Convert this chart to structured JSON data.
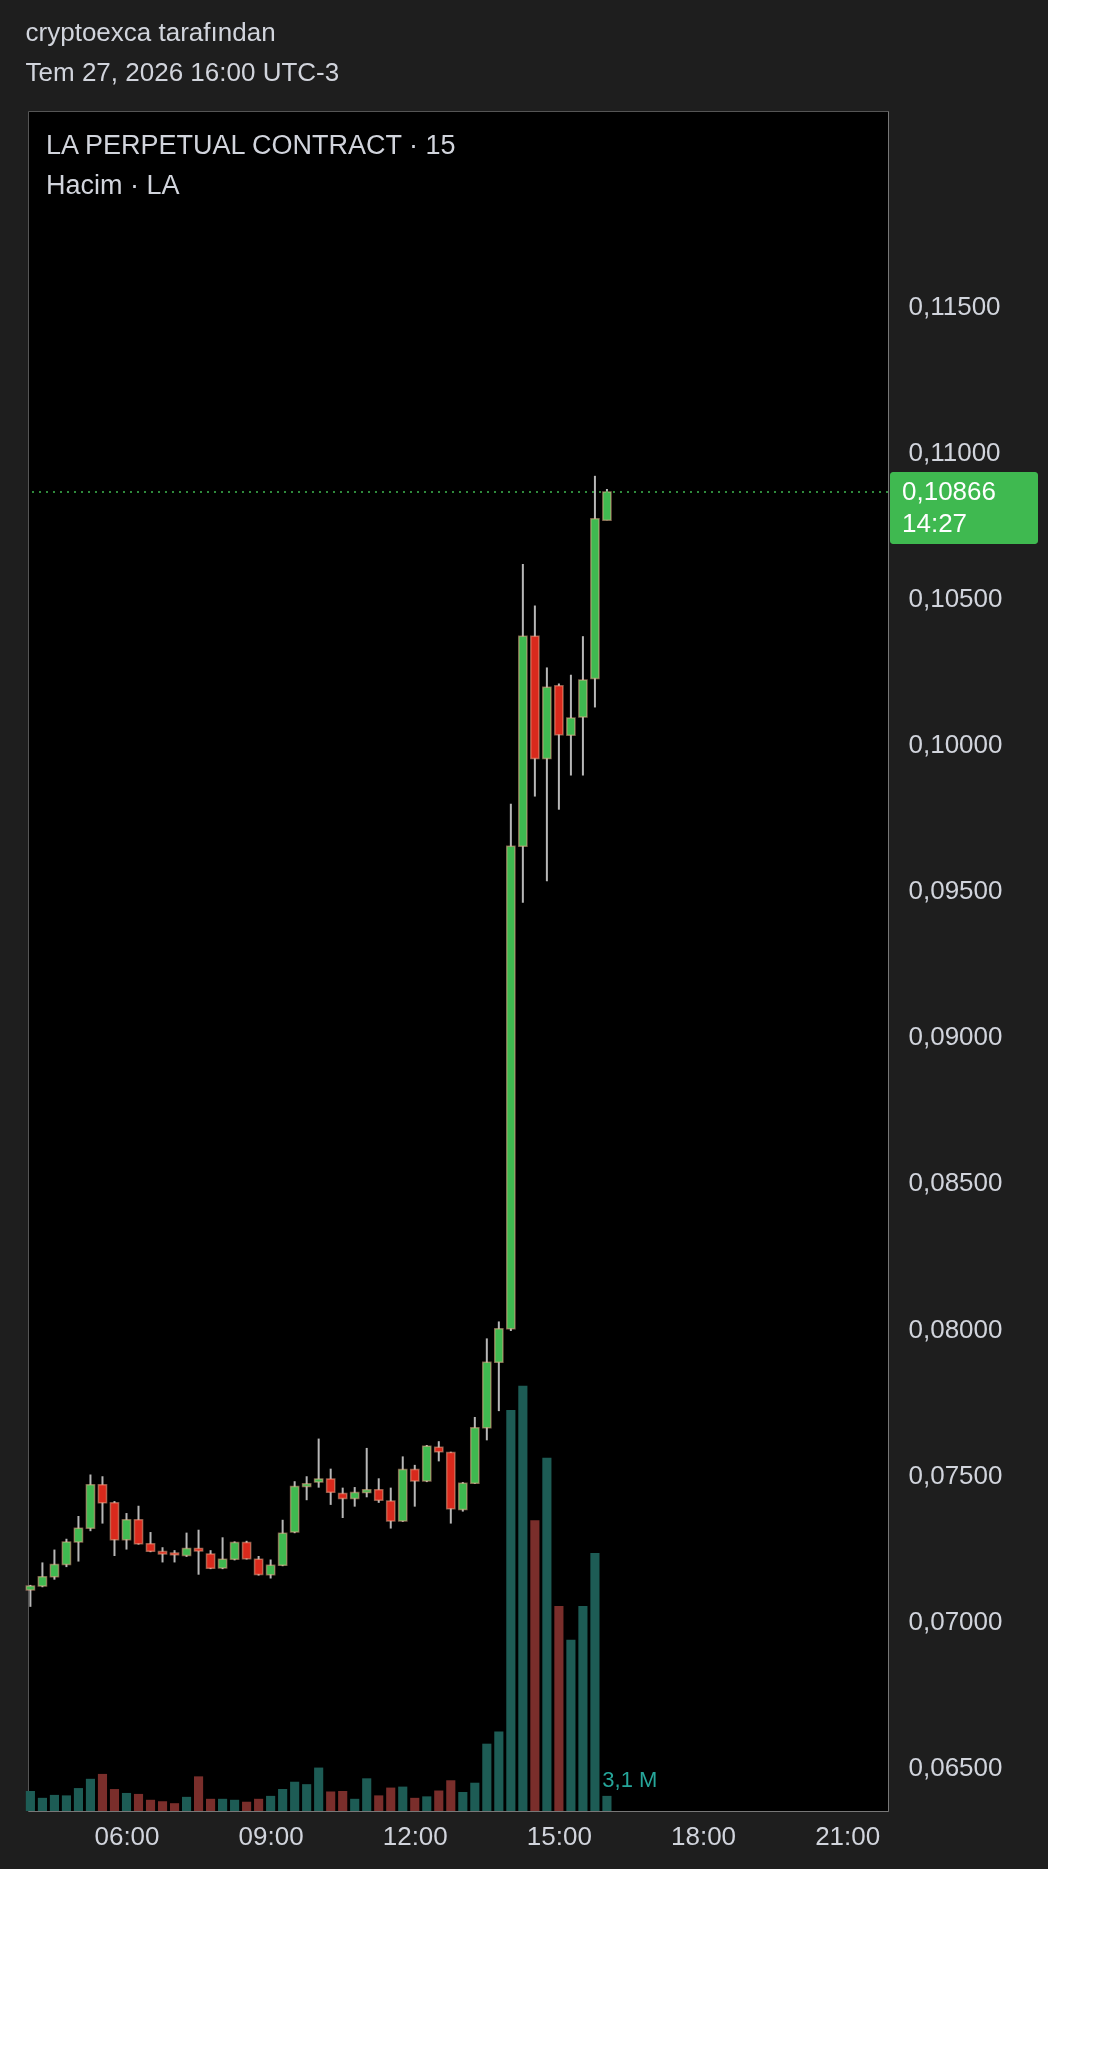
{
  "chart_data": {
    "type": "candlestick",
    "title": "LA PERPETUAL CONTRACT · 15",
    "subtitle": "Hacim · LA",
    "annotations": [
      "cryptoexca tarafından",
      "Tem 27, 2026 16:00 UTC-3",
      "14:27"
    ],
    "xlim": [
      3.95,
      21.85
    ],
    "xticks": [
      {
        "value": 6,
        "label": "06:00"
      },
      {
        "value": 9,
        "label": "09:00"
      },
      {
        "value": 12,
        "label": "12:00"
      },
      {
        "value": 15,
        "label": "15:00"
      },
      {
        "value": 18,
        "label": "18:00"
      },
      {
        "value": 21,
        "label": "21:00"
      }
    ],
    "ylim": [
      0.0635,
      0.1217
    ],
    "yticks": [
      {
        "value": 0.065,
        "label": "0,06500"
      },
      {
        "value": 0.07,
        "label": "0,07000"
      },
      {
        "value": 0.075,
        "label": "0,07500"
      },
      {
        "value": 0.08,
        "label": "0,08000"
      },
      {
        "value": 0.085,
        "label": "0,08500"
      },
      {
        "value": 0.09,
        "label": "0,09000"
      },
      {
        "value": 0.095,
        "label": "0,09500"
      },
      {
        "value": 0.1,
        "label": "0,10000"
      },
      {
        "value": 0.105,
        "label": "0,10500"
      },
      {
        "value": 0.11,
        "label": "0,11000"
      },
      {
        "value": 0.115,
        "label": "0,11500"
      }
    ],
    "y2lim": [
      0,
      348.5
    ],
    "grid": false,
    "ref_lines": [
      {
        "axis": "y",
        "value": 0.10866,
        "label": "0,10866",
        "color": "#3fb950",
        "line_style": "dotted"
      }
    ],
    "series": [
      {
        "x": [
          4,
          4.25,
          4.5,
          4.75,
          5,
          5.25,
          5.5,
          5.75,
          6,
          6.25,
          6.5,
          6.75,
          7,
          7.25,
          7.5,
          7.75,
          8,
          8.25,
          8.5,
          8.75,
          9,
          9.25,
          9.5,
          9.75,
          10,
          10.25,
          10.5,
          10.75,
          11,
          11.25,
          11.5,
          11.75,
          12,
          12.25,
          12.5,
          12.75,
          13,
          13.25,
          13.5,
          13.75,
          14,
          14.25,
          14.5,
          14.75,
          15,
          15.25,
          15.5,
          15.75,
          16
        ],
        "ohlc": [
          [
            0.07107,
            0.07124,
            0.07049,
            0.0712
          ],
          [
            0.0712,
            0.07201,
            0.07116,
            0.07152
          ],
          [
            0.07152,
            0.07245,
            0.07142,
            0.07194
          ],
          [
            0.07194,
            0.07282,
            0.07185,
            0.07271
          ],
          [
            0.07271,
            0.0736,
            0.07204,
            0.07318
          ],
          [
            0.07318,
            0.07502,
            0.07308,
            0.07467
          ],
          [
            0.07467,
            0.07496,
            0.07334,
            0.07405
          ],
          [
            0.07405,
            0.07411,
            0.07223,
            0.07279
          ],
          [
            0.07279,
            0.0737,
            0.07245,
            0.07347
          ],
          [
            0.07347,
            0.07395,
            0.07262,
            0.07265
          ],
          [
            0.07265,
            0.07305,
            0.07236,
            0.07239
          ],
          [
            0.07238,
            0.07253,
            0.07201,
            0.0723
          ],
          [
            0.07233,
            0.07243,
            0.07201,
            0.07227
          ],
          [
            0.07225,
            0.07303,
            0.0722,
            0.07249
          ],
          [
            0.07249,
            0.07313,
            0.07159,
            0.0724
          ],
          [
            0.0723,
            0.07243,
            0.07178,
            0.07181
          ],
          [
            0.07182,
            0.07287,
            0.07178,
            0.07212
          ],
          [
            0.07212,
            0.07273,
            0.07208,
            0.07269
          ],
          [
            0.07269,
            0.07275,
            0.07211,
            0.07214
          ],
          [
            0.07212,
            0.07223,
            0.07156,
            0.0716
          ],
          [
            0.07159,
            0.07211,
            0.07146,
            0.07191
          ],
          [
            0.07191,
            0.07347,
            0.07188,
            0.07301
          ],
          [
            0.07305,
            0.07479,
            0.07301,
            0.07461
          ],
          [
            0.07461,
            0.07496,
            0.07414,
            0.0747
          ],
          [
            0.07476,
            0.07625,
            0.07457,
            0.07487
          ],
          [
            0.07487,
            0.07522,
            0.07398,
            0.07441
          ],
          [
            0.07437,
            0.07457,
            0.07353,
            0.0742
          ],
          [
            0.0742,
            0.07459,
            0.07392,
            0.0744
          ],
          [
            0.0744,
            0.07593,
            0.07424,
            0.0745
          ],
          [
            0.0745,
            0.07489,
            0.07405,
            0.07414
          ],
          [
            0.07411,
            0.07457,
            0.07317,
            0.07343
          ],
          [
            0.07343,
            0.07564,
            0.0734,
            0.07519
          ],
          [
            0.07519,
            0.07535,
            0.07392,
            0.0748
          ],
          [
            0.0748,
            0.07603,
            0.07476,
            0.07599
          ],
          [
            0.07595,
            0.07616,
            0.07547,
            0.0758
          ],
          [
            0.07577,
            0.0758,
            0.07334,
            0.07385
          ],
          [
            0.07382,
            0.07476,
            0.07375,
            0.07472
          ],
          [
            0.07472,
            0.07699,
            0.0747,
            0.07662
          ],
          [
            0.07662,
            0.07968,
            0.07619,
            0.07886
          ],
          [
            0.07886,
            0.08026,
            0.07719,
            0.08001
          ],
          [
            0.08001,
            0.09798,
            0.07993,
            0.09653
          ],
          [
            0.09653,
            0.10619,
            0.09459,
            0.10372
          ],
          [
            0.10372,
            0.10477,
            0.09823,
            0.09953
          ],
          [
            0.09953,
            0.10265,
            0.09533,
            0.10197
          ],
          [
            0.10202,
            0.1021,
            0.09778,
            0.10035
          ],
          [
            0.10033,
            0.1024,
            0.09895,
            0.10092
          ],
          [
            0.10095,
            0.10372,
            0.09895,
            0.10222
          ],
          [
            0.10227,
            0.10921,
            0.10128,
            0.10774
          ],
          [
            0.10769,
            0.10876,
            0.10769,
            0.10866
          ]
        ],
        "colors": [
          "#3fb950",
          "#3fb950",
          "#3fb950",
          "#3fb950",
          "#3fb950",
          "#3fb950",
          "#d9291c",
          "#d9291c",
          "#3fb950",
          "#d9291c",
          "#d9291c",
          "#d9291c",
          "#d9291c",
          "#3fb950",
          "#d9291c",
          "#d9291c",
          "#3fb950",
          "#3fb950",
          "#d9291c",
          "#d9291c",
          "#3fb950",
          "#3fb950",
          "#3fb950",
          "#3fb950",
          "#3fb950",
          "#d9291c",
          "#d9291c",
          "#3fb950",
          "#3fb950",
          "#d9291c",
          "#d9291c",
          "#3fb950",
          "#d9291c",
          "#3fb950",
          "#d9291c",
          "#d9291c",
          "#3fb950",
          "#3fb950",
          "#3fb950",
          "#3fb950",
          "#3fb950",
          "#3fb950",
          "#d9291c",
          "#3fb950",
          "#d9291c",
          "#3fb950",
          "#3fb950",
          "#3fb950",
          "#3fb950"
        ]
      },
      {
        "type": "bar",
        "axis": "y2",
        "x": [
          4,
          4.25,
          4.5,
          4.75,
          5,
          5.25,
          5.5,
          5.75,
          6,
          6.25,
          6.5,
          6.75,
          7,
          7.25,
          7.5,
          7.75,
          8,
          8.25,
          8.5,
          8.75,
          9,
          9.25,
          9.5,
          9.75,
          10,
          10.25,
          10.5,
          10.75,
          11,
          11.25,
          11.5,
          11.75,
          12,
          12.25,
          12.5,
          12.75,
          13,
          13.25,
          13.5,
          13.75,
          14,
          14.25,
          14.5,
          14.75,
          15,
          15.25,
          15.5,
          15.75,
          16
        ],
        "values": [
          4.1,
          2.7,
          3.3,
          3.2,
          4.7,
          6.6,
          7.6,
          4.5,
          3.7,
          3.5,
          2.3,
          2.0,
          1.6,
          2.9,
          7.1,
          2.5,
          2.5,
          2.3,
          1.9,
          2.5,
          3.1,
          4.5,
          6.0,
          5.5,
          8.9,
          4.0,
          4.1,
          2.5,
          6.7,
          3.2,
          4.8,
          5.0,
          2.7,
          3.0,
          4.2,
          6.3,
          3.9,
          5.8,
          13.8,
          16.3,
          82.2,
          87.2,
          59.6,
          72.4,
          42.0,
          35.1,
          42.0,
          52.9,
          3.1
        ],
        "value_labels": [
          null,
          null,
          null,
          null,
          null,
          null,
          null,
          null,
          null,
          null,
          null,
          null,
          null,
          null,
          null,
          null,
          null,
          null,
          null,
          null,
          null,
          null,
          null,
          null,
          null,
          null,
          null,
          null,
          null,
          null,
          null,
          null,
          null,
          null,
          null,
          null,
          null,
          null,
          null,
          null,
          null,
          null,
          null,
          null,
          null,
          null,
          null,
          null,
          "3,1 M"
        ],
        "colors": [
          "#1d5c55",
          "#1d5c55",
          "#1d5c55",
          "#1d5c55",
          "#1d5c55",
          "#1d5c55",
          "#7a2e2b",
          "#7a2e2b",
          "#1d5c55",
          "#7a2e2b",
          "#7a2e2b",
          "#7a2e2b",
          "#7a2e2b",
          "#1d5c55",
          "#7a2e2b",
          "#7a2e2b",
          "#1d5c55",
          "#1d5c55",
          "#7a2e2b",
          "#7a2e2b",
          "#1d5c55",
          "#1d5c55",
          "#1d5c55",
          "#1d5c55",
          "#1d5c55",
          "#7a2e2b",
          "#7a2e2b",
          "#1d5c55",
          "#1d5c55",
          "#7a2e2b",
          "#7a2e2b",
          "#1d5c55",
          "#7a2e2b",
          "#1d5c55",
          "#7a2e2b",
          "#7a2e2b",
          "#1d5c55",
          "#1d5c55",
          "#1d5c55",
          "#1d5c55",
          "#1d5c55",
          "#1d5c55",
          "#7a2e2b",
          "#1d5c55",
          "#7a2e2b",
          "#1d5c55",
          "#1d5c55",
          "#1d5c55",
          "#1d5c55"
        ]
      }
    ]
  }
}
